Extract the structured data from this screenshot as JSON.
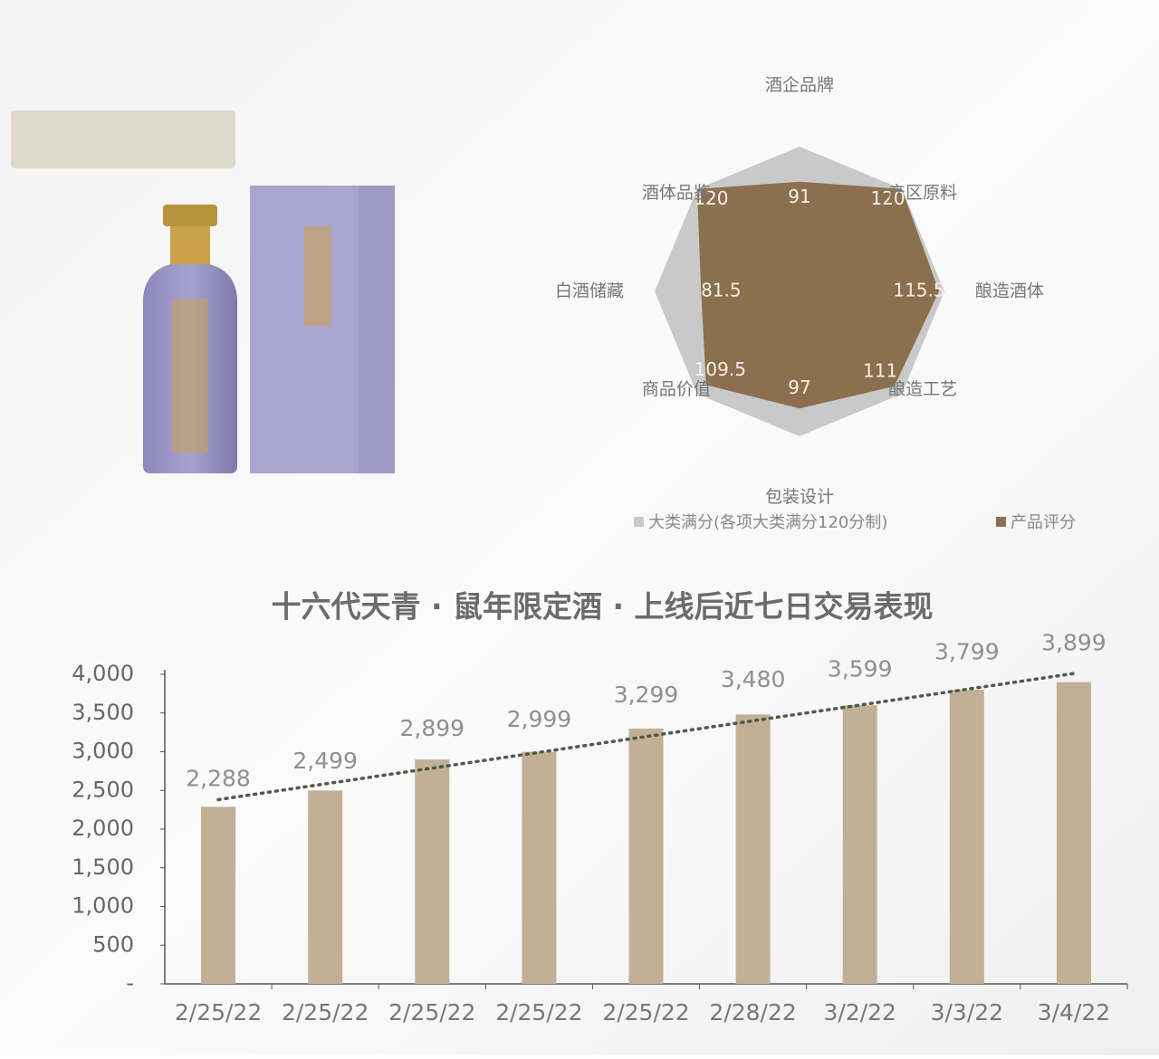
{
  "chart_data": [
    {
      "type": "radar",
      "categories": [
        "酒企品牌",
        "产区原料",
        "酿造酒体",
        "酿造工艺",
        "包装设计",
        "商品价值",
        "白酒储藏",
        "酒体品鉴"
      ],
      "series": [
        {
          "name": "大类满分(各项大类满分120分制)",
          "color": "#c9c9c9",
          "values": [
            120,
            120,
            120,
            120,
            120,
            120,
            120,
            120
          ]
        },
        {
          "name": "产品评分",
          "color": "#8b6f4e",
          "values": [
            91,
            120,
            115.5,
            111,
            97,
            109.5,
            81.5,
            120
          ]
        }
      ],
      "rlim": [
        0,
        120
      ]
    },
    {
      "type": "bar",
      "title": "十六代天青 · 鼠年限定酒 · 上线后近七日交易表现",
      "categories": [
        "2/25/22",
        "2/25/22",
        "2/25/22",
        "2/25/22",
        "2/25/22",
        "2/28/22",
        "3/2/22",
        "3/3/22",
        "3/4/22"
      ],
      "values": [
        2288,
        2499,
        2899,
        2999,
        3299,
        3480,
        3599,
        3799,
        3899
      ],
      "value_labels": [
        "2,288",
        "2,499",
        "2,899",
        "2,999",
        "3,299",
        "3,480",
        "3,599",
        "3,799",
        "3,899"
      ],
      "color": "#c1b096",
      "ylim": [
        0,
        4000
      ],
      "yticks": [
        {
          "value": 0,
          "label": "-"
        },
        500,
        {
          "value": 1000,
          "label": "1,000"
        },
        {
          "value": 1500,
          "label": "1,500"
        },
        {
          "value": 2000,
          "label": "2,000"
        },
        {
          "value": 2500,
          "label": "2,500"
        },
        {
          "value": 3000,
          "label": "3,000"
        },
        {
          "value": 3500,
          "label": "3,500"
        },
        {
          "value": 4000,
          "label": "4,000"
        }
      ],
      "trendline": true
    }
  ]
}
